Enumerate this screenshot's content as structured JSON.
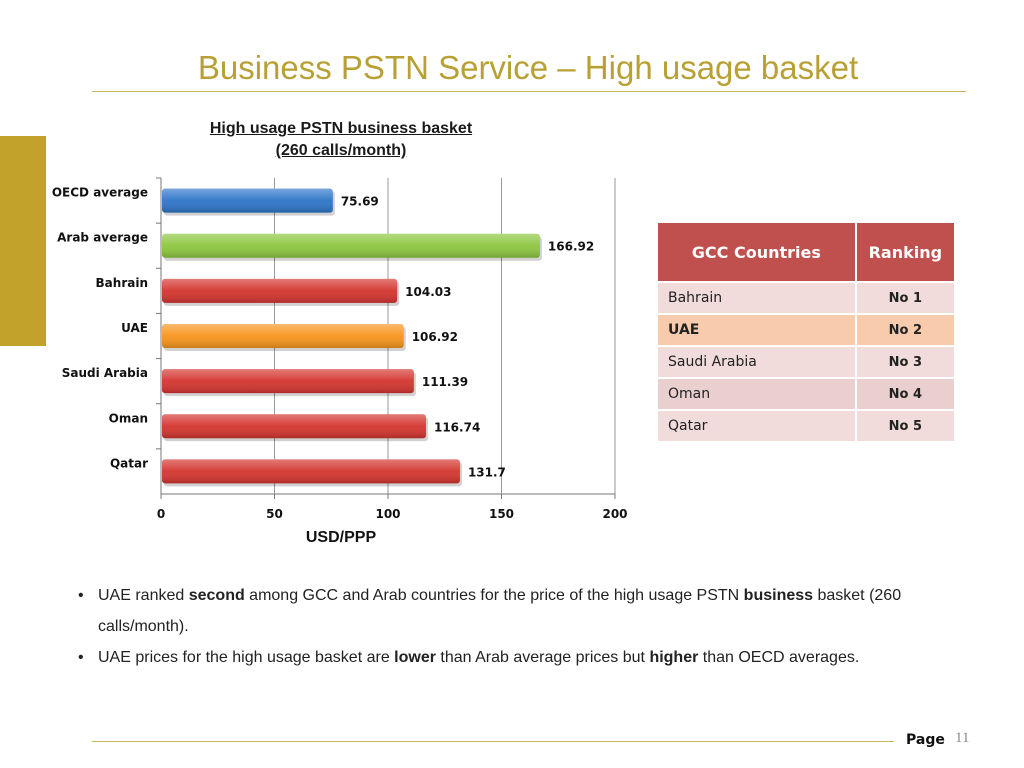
{
  "slide": {
    "title": "Business PSTN Service – High usage basket"
  },
  "chart_data": {
    "type": "bar",
    "orientation": "horizontal",
    "title": "High usage PSTN business basket",
    "subtitle": "(260 calls/month)",
    "xlabel": "USD/PPP",
    "ylabel": "",
    "xlim": [
      0,
      200
    ],
    "xticks": [
      0,
      50,
      100,
      150,
      200
    ],
    "grid": true,
    "categories": [
      "OECD average",
      "Arab average",
      "Bahrain",
      "UAE",
      "Saudi Arabia",
      "Oman",
      "Qatar"
    ],
    "values": [
      75.69,
      166.92,
      104.03,
      106.92,
      111.39,
      116.74,
      131.7
    ],
    "value_labels": [
      "75.69",
      "166.92",
      "104.03",
      "106.92",
      "111.39",
      "116.74",
      "131.7"
    ],
    "colors": [
      "#2e75c8",
      "#8cc63f",
      "#d4342e",
      "#f7941d",
      "#d4342e",
      "#d4342e",
      "#d4342e"
    ]
  },
  "table": {
    "headers": [
      "GCC Countries",
      "Ranking"
    ],
    "rows": [
      {
        "country": "Bahrain",
        "rank": "No 1"
      },
      {
        "country": "UAE",
        "rank": "No 2"
      },
      {
        "country": "Saudi Arabia",
        "rank": "No 3"
      },
      {
        "country": "Oman",
        "rank": "No 4"
      },
      {
        "country": "Qatar",
        "rank": "No 5"
      }
    ]
  },
  "bullets": [
    {
      "parts": [
        {
          "text": "UAE ranked ",
          "bold": false
        },
        {
          "text": "second",
          "bold": true
        },
        {
          "text": " among GCC and Arab countries for the price of the high usage PSTN ",
          "bold": false
        },
        {
          "text": "business",
          "bold": true
        },
        {
          "text": " basket (260 calls/month).",
          "bold": false
        }
      ]
    },
    {
      "parts": [
        {
          "text": "UAE prices for the high usage basket are ",
          "bold": false
        },
        {
          "text": "lower",
          "bold": true
        },
        {
          "text": " than Arab average prices but ",
          "bold": false
        },
        {
          "text": "higher",
          "bold": true
        },
        {
          "text": " than OECD averages.",
          "bold": false
        }
      ]
    }
  ],
  "footer": {
    "page_label": "Page",
    "page_number": "11"
  },
  "colors": {
    "title": "#b8a034",
    "accent_bar": "#c2a22a",
    "table_header": "#c0504d",
    "table_highlight": "#f8cbad"
  }
}
